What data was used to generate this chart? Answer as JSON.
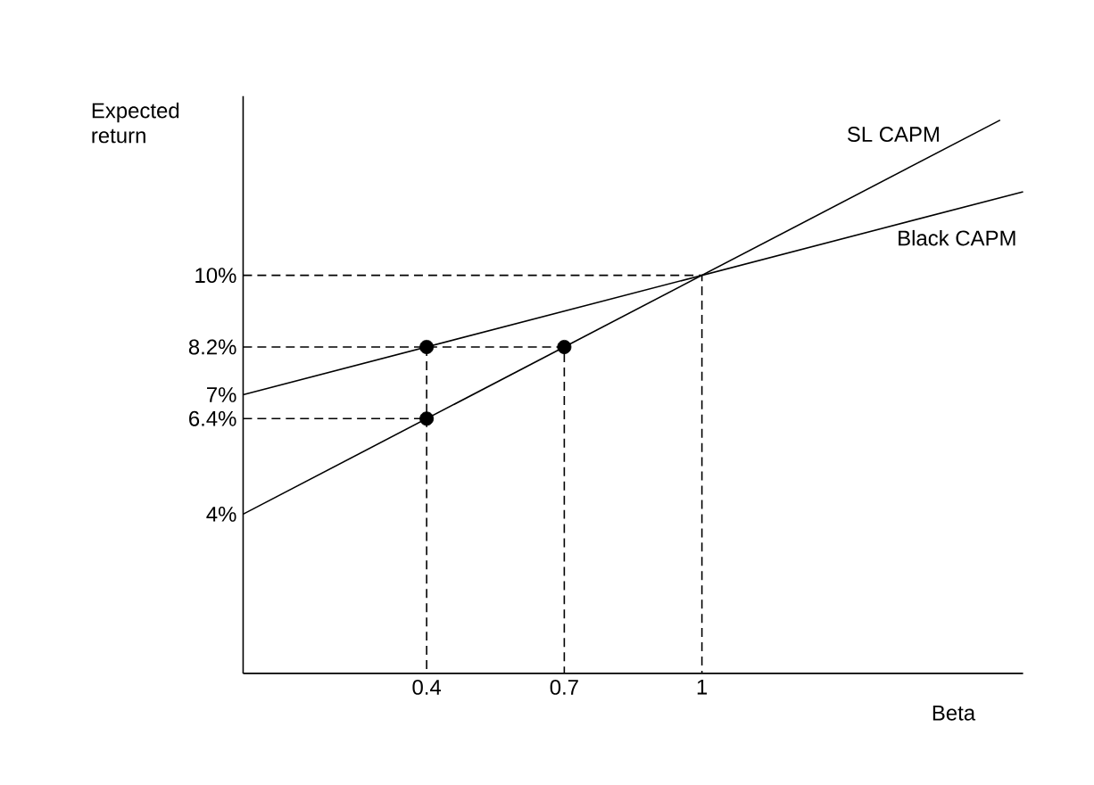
{
  "chart_data": {
    "type": "line",
    "xlabel": "Beta",
    "ylabel": "Expected return",
    "xlim": [
      0,
      1.7
    ],
    "ylim": [
      0,
      14.5
    ],
    "xticks": [
      0.4,
      0.7,
      1
    ],
    "yticks": [
      {
        "value": 4,
        "label": "4%"
      },
      {
        "value": 6.4,
        "label": "6.4%"
      },
      {
        "value": 7,
        "label": "7%"
      },
      {
        "value": 8.2,
        "label": "8.2%"
      },
      {
        "value": 10,
        "label": "10%"
      }
    ],
    "series": [
      {
        "name": "SL CAPM",
        "color": "#000000",
        "x": [
          0,
          1.65
        ],
        "values": [
          4,
          13.9
        ]
      },
      {
        "name": "Black CAPM",
        "color": "#000000",
        "x": [
          0,
          1.7
        ],
        "values": [
          7,
          12.1
        ]
      },
      {
        "type": "line",
        "line_style": "dashed",
        "color": "#000000",
        "x": [
          0,
          1,
          1
        ],
        "values": [
          10,
          10,
          0
        ]
      },
      {
        "type": "line",
        "line_style": "dashed",
        "color": "#000000",
        "x": [
          0,
          0.7,
          0.7
        ],
        "values": [
          8.2,
          8.2,
          0
        ]
      },
      {
        "type": "line",
        "line_style": "dashed",
        "color": "#000000",
        "x": [
          0.4,
          0.4
        ],
        "values": [
          8.2,
          0
        ]
      },
      {
        "type": "line",
        "line_style": "dashed",
        "color": "#000000",
        "x": [
          0,
          0.4
        ],
        "values": [
          6.4,
          6.4
        ]
      },
      {
        "type": "scatter",
        "color": "#000000",
        "x": [
          0.4,
          0.7,
          0.4
        ],
        "values": [
          8.2,
          8.2,
          6.4
        ]
      }
    ],
    "grid": false
  }
}
